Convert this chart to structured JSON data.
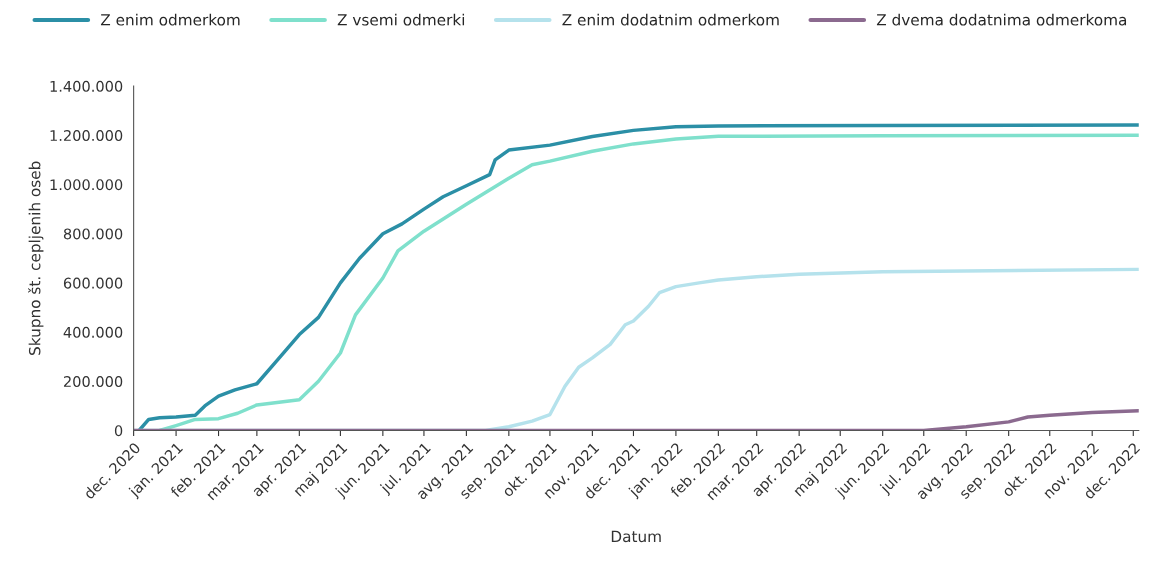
{
  "chart_data": {
    "type": "line",
    "xlabel": "Datum",
    "ylabel": "Skupno št. cepljenih oseb",
    "legend": "top",
    "grid": false,
    "marker": "none",
    "line_style": "solid",
    "xlim": [
      "2020-12-01",
      "2022-12-05"
    ],
    "ylim": [
      0,
      1400000
    ],
    "yticks": [
      0,
      {
        "value": 200000,
        "label": "200.000"
      },
      {
        "value": 400000,
        "label": "400.000"
      },
      {
        "value": 600000,
        "label": "600.000"
      },
      {
        "value": 800000,
        "label": "800.000"
      },
      {
        "value": 1000000,
        "label": "1.000.000"
      },
      {
        "value": 1200000,
        "label": "1.200.000"
      },
      {
        "value": 1400000,
        "label": "1.400.000"
      }
    ],
    "xticks": [
      {
        "value": "2020-12-01",
        "label": "dec. 2020"
      },
      {
        "value": "2021-01-01",
        "label": "jan. 2021"
      },
      {
        "value": "2021-02-01",
        "label": "feb. 2021"
      },
      {
        "value": "2021-03-01",
        "label": "mar. 2021"
      },
      {
        "value": "2021-04-01",
        "label": "apr. 2021"
      },
      {
        "value": "2021-05-01",
        "label": "maj 2021"
      },
      {
        "value": "2021-06-01",
        "label": "jun. 2021"
      },
      {
        "value": "2021-07-01",
        "label": "jul. 2021"
      },
      {
        "value": "2021-08-01",
        "label": "avg. 2021"
      },
      {
        "value": "2021-09-01",
        "label": "sep. 2021"
      },
      {
        "value": "2021-10-01",
        "label": "okt. 2021"
      },
      {
        "value": "2021-11-01",
        "label": "nov. 2021"
      },
      {
        "value": "2021-12-01",
        "label": "dec. 2021"
      },
      {
        "value": "2022-01-01",
        "label": "jan. 2022"
      },
      {
        "value": "2022-02-01",
        "label": "feb. 2022"
      },
      {
        "value": "2022-03-01",
        "label": "mar. 2022"
      },
      {
        "value": "2022-04-01",
        "label": "apr. 2022"
      },
      {
        "value": "2022-05-01",
        "label": "maj 2022"
      },
      {
        "value": "2022-06-01",
        "label": "jun. 2022"
      },
      {
        "value": "2022-07-01",
        "label": "jul. 2022"
      },
      {
        "value": "2022-08-01",
        "label": "avg. 2022"
      },
      {
        "value": "2022-09-01",
        "label": "sep. 2022"
      },
      {
        "value": "2022-10-01",
        "label": "okt. 2022"
      },
      {
        "value": "2022-11-01",
        "label": "nov. 2022"
      },
      {
        "value": "2022-12-01",
        "label": "dec. 2022"
      }
    ],
    "series": [
      {
        "name": "Z enim odmerkom",
        "color": "#2b8fa6",
        "x": [
          "2020-12-05",
          "2020-12-12",
          "2020-12-20",
          "2021-01-01",
          "2021-01-15",
          "2021-01-22",
          "2021-02-01",
          "2021-02-13",
          "2021-03-01",
          "2021-03-15",
          "2021-04-01",
          "2021-04-15",
          "2021-05-01",
          "2021-05-15",
          "2021-06-01",
          "2021-06-15",
          "2021-07-01",
          "2021-07-15",
          "2021-08-01",
          "2021-08-18",
          "2021-08-22",
          "2021-09-01",
          "2021-10-01",
          "2021-11-01",
          "2021-12-01",
          "2022-01-01",
          "2022-02-01",
          "2022-06-01",
          "2022-12-05"
        ],
        "values": [
          0,
          45000,
          52000,
          55000,
          62000,
          100000,
          140000,
          165000,
          190000,
          280000,
          390000,
          460000,
          600000,
          700000,
          800000,
          840000,
          900000,
          950000,
          995000,
          1040000,
          1100000,
          1140000,
          1160000,
          1195000,
          1220000,
          1235000,
          1238000,
          1240000,
          1242000
        ]
      },
      {
        "name": "Z vsemi odmerki",
        "color": "#7fe0cc",
        "x": [
          "2020-12-20",
          "2021-01-01",
          "2021-01-15",
          "2021-02-01",
          "2021-02-15",
          "2021-03-01",
          "2021-04-01",
          "2021-04-15",
          "2021-05-01",
          "2021-05-12",
          "2021-06-01",
          "2021-06-12",
          "2021-07-01",
          "2021-08-01",
          "2021-09-01",
          "2021-09-18",
          "2021-10-01",
          "2021-11-01",
          "2021-12-01",
          "2022-01-01",
          "2022-02-01",
          "2022-06-01",
          "2022-12-05"
        ],
        "values": [
          0,
          20000,
          45000,
          48000,
          70000,
          104000,
          125000,
          200000,
          315000,
          470000,
          620000,
          730000,
          810000,
          920000,
          1025000,
          1080000,
          1095000,
          1135000,
          1165000,
          1185000,
          1196000,
          1198000,
          1200000
        ]
      },
      {
        "name": "Z enim dodatnim odmerkom",
        "color": "#b5e2ec",
        "x": [
          "2020-12-01",
          "2021-08-15",
          "2021-09-01",
          "2021-09-18",
          "2021-10-01",
          "2021-10-12",
          "2021-10-22",
          "2021-11-01",
          "2021-11-14",
          "2021-11-25",
          "2021-12-01",
          "2021-12-12",
          "2021-12-20",
          "2022-01-01",
          "2022-01-18",
          "2022-02-01",
          "2022-03-01",
          "2022-04-01",
          "2022-06-01",
          "2022-12-05"
        ],
        "values": [
          0,
          0,
          15000,
          38000,
          65000,
          180000,
          257000,
          295000,
          350000,
          430000,
          445000,
          505000,
          560000,
          585000,
          600000,
          612000,
          625000,
          635000,
          645000,
          655000
        ]
      },
      {
        "name": "Z dvema dodatnima odmerkoma",
        "color": "#8b6a8f",
        "x": [
          "2020-12-01",
          "2022-07-01",
          "2022-08-01",
          "2022-09-01",
          "2022-09-15",
          "2022-10-01",
          "2022-11-01",
          "2022-12-05"
        ],
        "values": [
          0,
          0,
          15000,
          35000,
          55000,
          62000,
          73000,
          80000
        ]
      }
    ]
  }
}
